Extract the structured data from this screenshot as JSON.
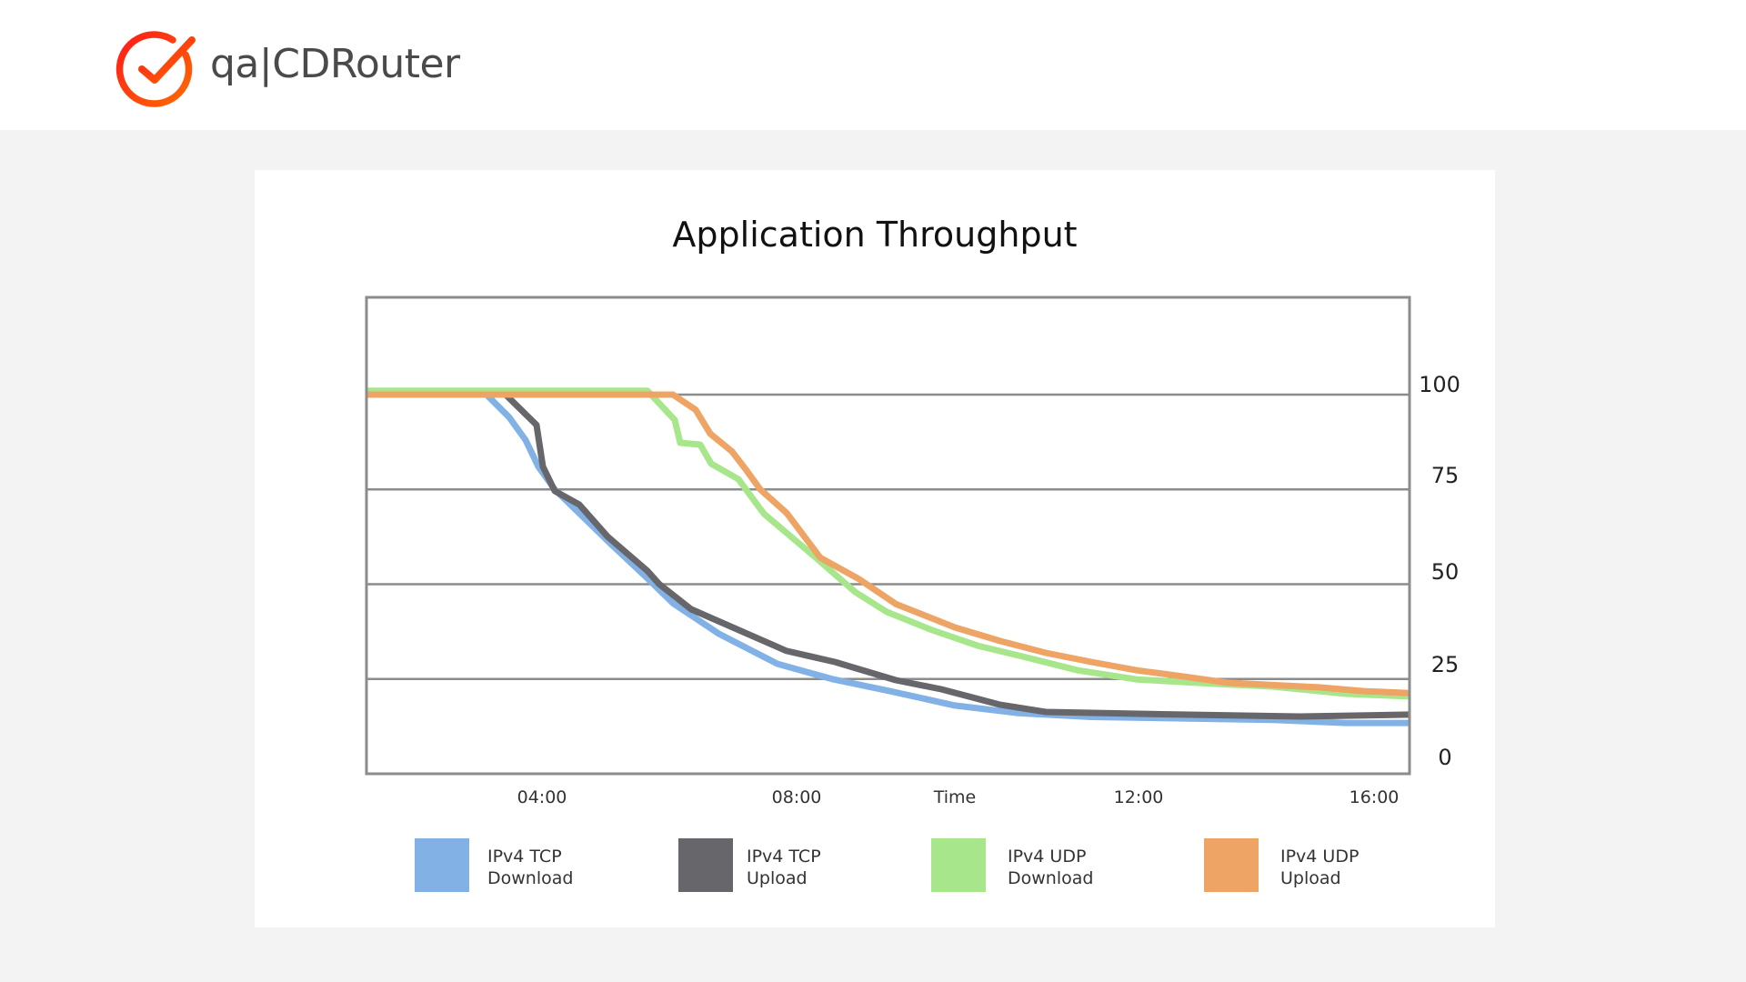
{
  "header": {
    "brand_text": "qa|CDRouter",
    "logo_icon": "check-circle-icon",
    "logo_gradient": [
      "#ff1a1a",
      "#ff6a00"
    ]
  },
  "chart": {
    "title": "Application Throughput",
    "x_axis_title": "Time",
    "y_ticks": [
      {
        "label": "100",
        "value": 100
      },
      {
        "label": "75",
        "value": 75
      },
      {
        "label": "50",
        "value": 50
      },
      {
        "label": "25",
        "value": 25
      },
      {
        "label": "0",
        "value": 0
      }
    ],
    "x_ticks": [
      {
        "label": "04:00"
      },
      {
        "label": "08:00"
      },
      {
        "label": "Time"
      },
      {
        "label": "12:00"
      },
      {
        "label": "16:00"
      }
    ],
    "legend": [
      {
        "line1": "IPv4 TCP",
        "line2": "Download",
        "color": "#82b1e6"
      },
      {
        "line1": "IPv4 TCP",
        "line2": "Upload",
        "color": "#67676b"
      },
      {
        "line1": "IPv4 UDP",
        "line2": "Download",
        "color": "#a8e68c"
      },
      {
        "line1": "IPv4 UDP",
        "line2": "Upload",
        "color": "#eda465"
      }
    ],
    "colors": {
      "border": "#8c8c8c",
      "grid": "#8c8c8c"
    }
  },
  "chart_data": {
    "type": "line",
    "title": "Application Throughput",
    "xlabel": "Time",
    "ylabel": "",
    "ylim": [
      0,
      125
    ],
    "y_axis_position": "right",
    "y_ticks": [
      0,
      25,
      50,
      75,
      100
    ],
    "x_tick_labels": [
      "04:00",
      "08:00",
      "12:00",
      "16:00"
    ],
    "grid": {
      "horizontal": true,
      "vertical": false
    },
    "legend_position": "bottom",
    "series": [
      {
        "name": "IPv4 TCP Download",
        "color": "#82b1e6",
        "points": [
          [
            0,
            100
          ],
          [
            132,
            100
          ],
          [
            157,
            94
          ],
          [
            175,
            88
          ],
          [
            189,
            81
          ],
          [
            207,
            75
          ],
          [
            237,
            68
          ],
          [
            267,
            61
          ],
          [
            307,
            52
          ],
          [
            337,
            45
          ],
          [
            387,
            37
          ],
          [
            452,
            29
          ],
          [
            512,
            25
          ],
          [
            572,
            22
          ],
          [
            647,
            18
          ],
          [
            717,
            16
          ],
          [
            797,
            15
          ],
          [
            897,
            14.6
          ],
          [
            997,
            14.2
          ],
          [
            1077,
            13.4
          ],
          [
            1147,
            13.4
          ]
        ]
      },
      {
        "name": "IPv4 TCP Upload",
        "color": "#67676b",
        "points": [
          [
            0,
            100
          ],
          [
            153,
            100
          ],
          [
            187,
            92
          ],
          [
            194,
            81
          ],
          [
            207,
            74.6
          ],
          [
            234,
            71
          ],
          [
            265,
            62.6
          ],
          [
            309,
            53.5
          ],
          [
            322,
            50
          ],
          [
            357,
            43.4
          ],
          [
            462,
            32.4
          ],
          [
            515,
            29.5
          ],
          [
            582,
            24.7
          ],
          [
            632,
            22.3
          ],
          [
            697,
            18.2
          ],
          [
            747,
            16.3
          ],
          [
            897,
            15.6
          ],
          [
            1027,
            15.1
          ],
          [
            1147,
            15.6
          ]
        ]
      },
      {
        "name": "IPv4 UDP Download",
        "color": "#a8e68c",
        "points": [
          [
            0,
            101
          ],
          [
            309,
            101
          ],
          [
            339,
            93.3
          ],
          [
            345,
            87.3
          ],
          [
            367,
            86.8
          ],
          [
            379,
            81.8
          ],
          [
            409,
            77.7
          ],
          [
            437,
            68.6
          ],
          [
            497,
            56.4
          ],
          [
            537,
            48
          ],
          [
            572,
            42.7
          ],
          [
            622,
            37.9
          ],
          [
            672,
            33.8
          ],
          [
            722,
            30.9
          ],
          [
            782,
            27.3
          ],
          [
            847,
            24.9
          ],
          [
            937,
            23.7
          ],
          [
            997,
            23
          ],
          [
            1077,
            21.1
          ],
          [
            1147,
            20.4
          ]
        ]
      },
      {
        "name": "IPv4 UDP Upload",
        "color": "#eda465",
        "points": [
          [
            0,
            100
          ],
          [
            337,
            100
          ],
          [
            362,
            96
          ],
          [
            378,
            89.7
          ],
          [
            402,
            85
          ],
          [
            417,
            80.3
          ],
          [
            433,
            75
          ],
          [
            462,
            68.8
          ],
          [
            499,
            57
          ],
          [
            542,
            51.3
          ],
          [
            582,
            44.8
          ],
          [
            647,
            38.6
          ],
          [
            697,
            35
          ],
          [
            747,
            31.9
          ],
          [
            797,
            29.5
          ],
          [
            847,
            27.3
          ],
          [
            897,
            25.7
          ],
          [
            947,
            24
          ],
          [
            1047,
            22.8
          ],
          [
            1097,
            21.8
          ],
          [
            1147,
            21.3
          ]
        ]
      }
    ]
  }
}
